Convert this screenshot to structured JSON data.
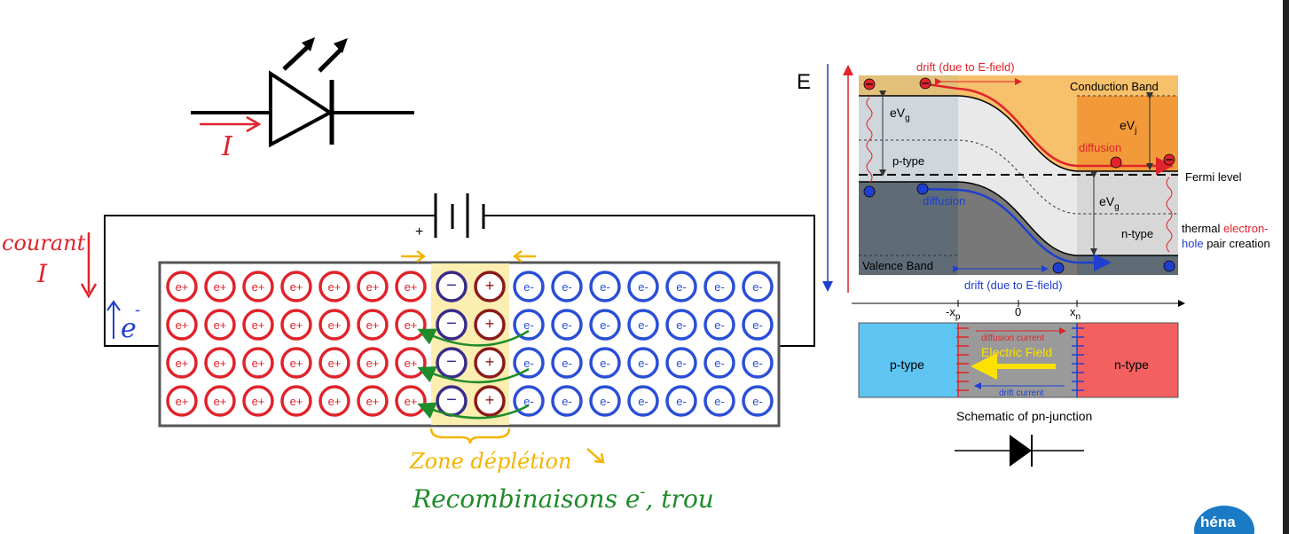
{
  "led": {
    "current_label": "I"
  },
  "circuit": {
    "plus_label": "+",
    "current_label": "courant",
    "current_symbol": "I",
    "electron_label": "e",
    "electron_sup": "-"
  },
  "junction": {
    "hole_label": "e+",
    "electron_label": "e-",
    "neg_ion": "−",
    "pos_ion": "+",
    "rows": 4,
    "hole_cols": 7,
    "electron_cols": 7,
    "depletion_label": "Zone déplétion",
    "recombination_label": "Recombinaisons e",
    "recombination_sup": "-",
    "recombination_tail": ", trou",
    "colors": {
      "hole": "#e0232b",
      "electron": "#2a4fd6",
      "ion_neg": "#3a2a8a",
      "ion_pos": "#8b1a1a",
      "depletion": "#fbeeb0",
      "annot_orange": "#f4b400",
      "annot_green": "#1f8b2a"
    }
  },
  "band": {
    "axis_label": "E",
    "drift_top": "drift (due to E-field)",
    "conduction": "Conduction Band",
    "egv_left": "eV",
    "egv_left_sub": "g",
    "evj": "eV",
    "evj_sub": "j",
    "diffusion_red": "diffusion",
    "ptype": "p-type",
    "fermi": "Fermi level",
    "diffusion_blue": "diffusion",
    "egv_right": "eV",
    "egv_right_sub": "g",
    "thermal_1a": "thermal ",
    "thermal_1b": "electron-",
    "thermal_2a": "hole",
    "thermal_2b": " pair creation",
    "ntype": "n-type",
    "valence": "Valence Band",
    "drift_bottom": "drift (due to E-field)",
    "xp": "-x",
    "xp_sub": "p",
    "zero": "0",
    "xn": "x",
    "xn_sub": "n"
  },
  "schematic": {
    "ptype": "p-type",
    "ntype": "n-type",
    "diffusion_current": "diffusion current",
    "electric_field": "Electric Field",
    "drift_current": "drift current",
    "caption": "Schematic of pn-junction"
  },
  "logo": {
    "text": "héna"
  }
}
